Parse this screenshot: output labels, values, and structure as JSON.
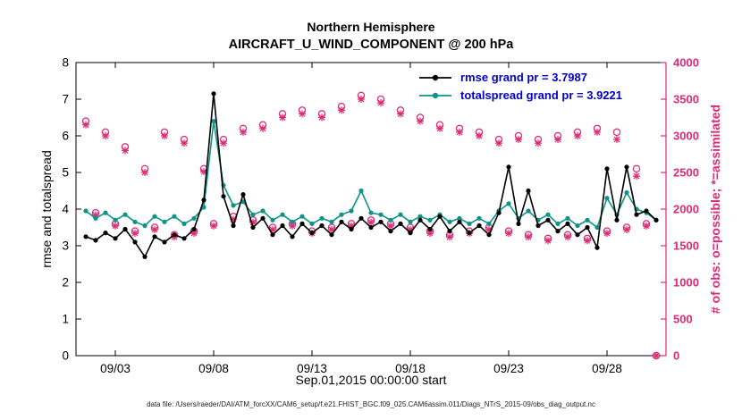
{
  "footer": {
    "caption": "data file: /Users/raeder/DAI/ATM_forcXX/CAM6_setup/f.e21.FHIST_BGC.f09_025.CAM6assim.011/Diags_NTrS_2015-09/obs_diag_output.nc"
  },
  "chart_data": {
    "type": "line",
    "title": "Northern Hemisphere",
    "subtitle": "AIRCRAFT_U_WIND_COMPONENT @ 200 hPa",
    "xlabel": "Sep.01,2015 00:00:00 start",
    "ylabel_left": "rmse and totalspread",
    "ylabel_right": "# of obs: o=possible; *=assimilated",
    "grid": false,
    "legend_position": "top-right",
    "xlim": [
      0,
      30
    ],
    "ylim_left": [
      0,
      8
    ],
    "ylim_right": [
      0,
      4000
    ],
    "yticks_left": [
      0,
      1,
      2,
      3,
      4,
      5,
      6,
      7,
      8
    ],
    "yticks_right": [
      0,
      500,
      1000,
      1500,
      2000,
      2500,
      3000,
      3500,
      4000
    ],
    "xticks": [
      2,
      7,
      12,
      17,
      22,
      27
    ],
    "xtick_labels": [
      "09/03",
      "09/08",
      "09/13",
      "09/18",
      "09/23",
      "09/28"
    ],
    "x_units": "days since Sep.01,2015 00:00:00",
    "x": [
      0.5,
      1,
      1.5,
      2,
      2.5,
      3,
      3.5,
      4,
      4.5,
      5,
      5.5,
      6,
      6.5,
      7,
      7.5,
      8,
      8.5,
      9,
      9.5,
      10,
      10.5,
      11,
      11.5,
      12,
      12.5,
      13,
      13.5,
      14,
      14.5,
      15,
      15.5,
      16,
      16.5,
      17,
      17.5,
      18,
      18.5,
      19,
      19.5,
      20,
      20.5,
      21,
      21.5,
      22,
      22.5,
      23,
      23.5,
      24,
      24.5,
      25,
      25.5,
      26,
      26.5,
      27,
      27.5,
      28,
      28.5,
      29,
      29.5
    ],
    "series": [
      {
        "name": "rmse",
        "legend": "rmse grand pr = 3.7987",
        "grand_pr": 3.7987,
        "color": "#000000",
        "values": [
          3.25,
          3.15,
          3.35,
          3.2,
          3.45,
          3.1,
          2.7,
          3.25,
          3.1,
          3.3,
          3.2,
          3.45,
          4.25,
          7.15,
          4.35,
          3.55,
          4.4,
          3.5,
          3.75,
          3.3,
          3.55,
          3.25,
          3.6,
          3.35,
          3.55,
          3.3,
          3.65,
          3.45,
          3.75,
          3.5,
          3.65,
          3.4,
          3.6,
          3.35,
          3.7,
          3.45,
          3.8,
          3.4,
          3.65,
          3.35,
          3.55,
          3.3,
          3.9,
          5.15,
          3.6,
          4.5,
          3.55,
          3.7,
          3.4,
          3.6,
          3.3,
          3.5,
          2.95,
          5.1,
          3.7,
          5.15,
          3.85,
          3.95,
          3.7
        ]
      },
      {
        "name": "totalspread",
        "legend": "totalspread grand pr = 3.9221",
        "grand_pr": 3.9221,
        "color": "#0d9488",
        "values": [
          3.95,
          3.75,
          3.9,
          3.7,
          3.85,
          3.65,
          3.55,
          3.8,
          3.65,
          3.8,
          3.6,
          3.75,
          4.05,
          6.4,
          4.65,
          4.1,
          4.2,
          3.85,
          3.95,
          3.7,
          3.85,
          3.65,
          3.8,
          3.6,
          3.75,
          3.65,
          3.85,
          3.95,
          4.5,
          3.9,
          3.85,
          3.7,
          3.85,
          3.65,
          3.8,
          3.7,
          3.85,
          3.65,
          3.75,
          3.6,
          3.75,
          3.6,
          3.95,
          4.15,
          3.75,
          3.95,
          3.7,
          3.85,
          3.6,
          3.75,
          3.55,
          3.7,
          3.5,
          4.3,
          3.85,
          4.45,
          4.0,
          3.9,
          3.7
        ]
      }
    ],
    "obs_possible": [
      3200,
      1950,
      3050,
      1800,
      2850,
      1700,
      2550,
      1750,
      3050,
      1650,
      2950,
      1700,
      2550,
      1800,
      2950,
      1900,
      3100,
      1850,
      3150,
      1750,
      3300,
      1800,
      3350,
      1700,
      3300,
      1750,
      3400,
      1800,
      3550,
      1850,
      3500,
      1800,
      3350,
      1750,
      3250,
      1700,
      3150,
      1650,
      3100,
      1700,
      3050,
      1750,
      2950,
      1700,
      3000,
      1650,
      2950,
      1600,
      3000,
      1650,
      3050,
      1600,
      3100,
      1700,
      3050,
      1750,
      2550,
      1800,
      0
    ],
    "obs_assimilated": [
      3150,
      1920,
      3000,
      1770,
      2800,
      1670,
      2500,
      1720,
      3000,
      1620,
      2900,
      1670,
      2510,
      1770,
      2900,
      1860,
      3050,
      1820,
      3100,
      1720,
      3250,
      1770,
      3300,
      1670,
      3250,
      1720,
      3350,
      1770,
      3500,
      1820,
      3450,
      1770,
      3300,
      1720,
      3200,
      1670,
      3100,
      1620,
      3050,
      1670,
      3000,
      1720,
      2900,
      1670,
      2950,
      1620,
      2900,
      1570,
      2950,
      1620,
      3000,
      1570,
      3050,
      1670,
      2950,
      1720,
      2450,
      1770,
      0
    ],
    "colors": {
      "obs_markers": "#e02a74",
      "legend_text": "#0000cc",
      "axis": "#000000"
    }
  }
}
